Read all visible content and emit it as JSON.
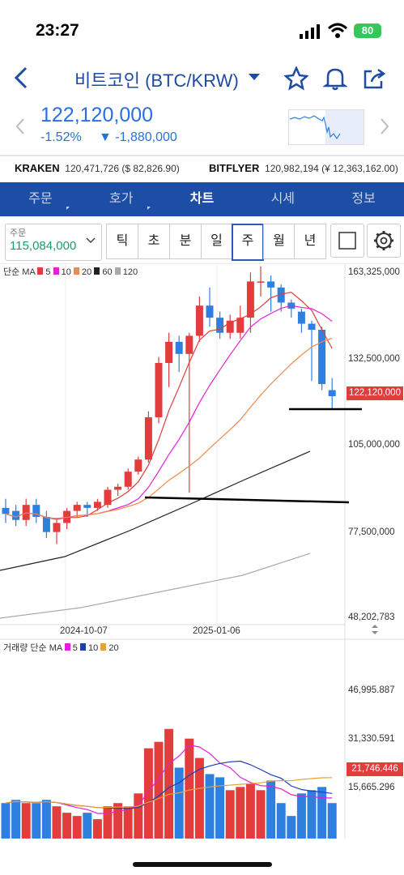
{
  "status": {
    "time": "23:27",
    "battery": "80"
  },
  "header": {
    "title": "비트코인 (BTC/KRW)",
    "price": "122,120,000",
    "change_pct": "-1.52%",
    "change_abs": "▼ -1,880,000"
  },
  "exchanges": [
    {
      "name": "KRAKEN",
      "value": "120,471,726 ($ 82,826.90)"
    },
    {
      "name": "BITFLYER",
      "value": "120,982,194 (¥ 12,363,162.00)"
    }
  ],
  "tabs": [
    {
      "label": "주문",
      "active": false
    },
    {
      "label": "호가",
      "active": false
    },
    {
      "label": "차트",
      "active": true
    },
    {
      "label": "시세",
      "active": false
    },
    {
      "label": "정보",
      "active": false
    }
  ],
  "order": {
    "label": "주문",
    "value": "115,084,000"
  },
  "periods": [
    "틱",
    "초",
    "분",
    "일",
    "주",
    "월",
    "년"
  ],
  "selected_period": "주",
  "legend": {
    "price": "단순 MA",
    "price_items": [
      {
        "label": "5",
        "color": "#e23c3c"
      },
      {
        "label": "10",
        "color": "#e51fd6"
      },
      {
        "label": "20",
        "color": "#f08a4b"
      },
      {
        "label": "60",
        "color": "#222222"
      },
      {
        "label": "120",
        "color": "#aaaaaa"
      }
    ],
    "volume": "거래량 단순 MA",
    "volume_items": [
      {
        "label": "5",
        "color": "#e51fd6"
      },
      {
        "label": "10",
        "color": "#1d3fb5"
      },
      {
        "label": "20",
        "color": "#e8a23a"
      }
    ]
  },
  "colors": {
    "up": "#e23c3c",
    "down": "#2f7fe0",
    "accent": "#1d4ea5"
  },
  "chart_data": {
    "type": "candlestick",
    "interval": "weekly",
    "price_axis_ticks": [
      "163,325,000",
      "132,500,000",
      "105,000,000",
      "77,500,000",
      "48,202,783"
    ],
    "current_price_label": "122,120,000",
    "volume_axis_ticks": [
      "46,995.887",
      "31,330.591",
      "15,665.296"
    ],
    "current_volume_label": "21,746.446",
    "date_ticks": [
      "2024-10-07",
      "2025-01-06"
    ],
    "candles": [
      {
        "o": 85,
        "c": 83,
        "h": 88,
        "l": 80
      },
      {
        "o": 84,
        "c": 81,
        "h": 86,
        "l": 79
      },
      {
        "o": 81,
        "c": 86,
        "h": 88,
        "l": 79
      },
      {
        "o": 86,
        "c": 82,
        "h": 88,
        "l": 80
      },
      {
        "o": 82,
        "c": 77,
        "h": 84,
        "l": 75
      },
      {
        "o": 77,
        "c": 80,
        "h": 81,
        "l": 73
      },
      {
        "o": 80,
        "c": 84,
        "h": 85,
        "l": 78
      },
      {
        "o": 84,
        "c": 86,
        "h": 87,
        "l": 82
      },
      {
        "o": 86,
        "c": 85,
        "h": 87,
        "l": 82
      },
      {
        "o": 85,
        "c": 87,
        "h": 88,
        "l": 84
      },
      {
        "o": 86,
        "c": 91,
        "h": 92,
        "l": 85
      },
      {
        "o": 91,
        "c": 92,
        "h": 93,
        "l": 89
      },
      {
        "o": 92,
        "c": 97,
        "h": 98,
        "l": 91
      },
      {
        "o": 97,
        "c": 101,
        "h": 102,
        "l": 96
      },
      {
        "o": 101,
        "c": 115,
        "h": 117,
        "l": 100
      },
      {
        "o": 115,
        "c": 133,
        "h": 135,
        "l": 113
      },
      {
        "o": 133,
        "c": 140,
        "h": 143,
        "l": 125
      },
      {
        "o": 140,
        "c": 136,
        "h": 142,
        "l": 130
      },
      {
        "o": 136,
        "c": 142,
        "h": 143,
        "l": 90
      },
      {
        "o": 142,
        "c": 152,
        "h": 155,
        "l": 140
      },
      {
        "o": 152,
        "c": 148,
        "h": 158,
        "l": 145
      },
      {
        "o": 148,
        "c": 143,
        "h": 150,
        "l": 141
      },
      {
        "o": 143,
        "c": 147,
        "h": 149,
        "l": 141
      },
      {
        "o": 143,
        "c": 148,
        "h": 152,
        "l": 141
      },
      {
        "o": 148,
        "c": 160,
        "h": 163,
        "l": 143
      },
      {
        "o": 160,
        "c": 160,
        "h": 165,
        "l": 155
      },
      {
        "o": 160,
        "c": 158,
        "h": 162,
        "l": 150
      },
      {
        "o": 158,
        "c": 153,
        "h": 159,
        "l": 150
      },
      {
        "o": 153,
        "c": 151,
        "h": 154,
        "l": 148
      },
      {
        "o": 150,
        "c": 146,
        "h": 151,
        "l": 143
      },
      {
        "o": 146,
        "c": 144,
        "h": 147,
        "l": 127
      },
      {
        "o": 144,
        "c": 126,
        "h": 145,
        "l": 124
      },
      {
        "o": 124,
        "c": 122,
        "h": 128,
        "l": 118
      }
    ],
    "volume": [
      11,
      12,
      11,
      11,
      12,
      10,
      8,
      7,
      8,
      6,
      10,
      11,
      10,
      14,
      28,
      30,
      34,
      22,
      31,
      25,
      20,
      19,
      15,
      16,
      17,
      15,
      18,
      11,
      7,
      14,
      15,
      16,
      11
    ]
  }
}
